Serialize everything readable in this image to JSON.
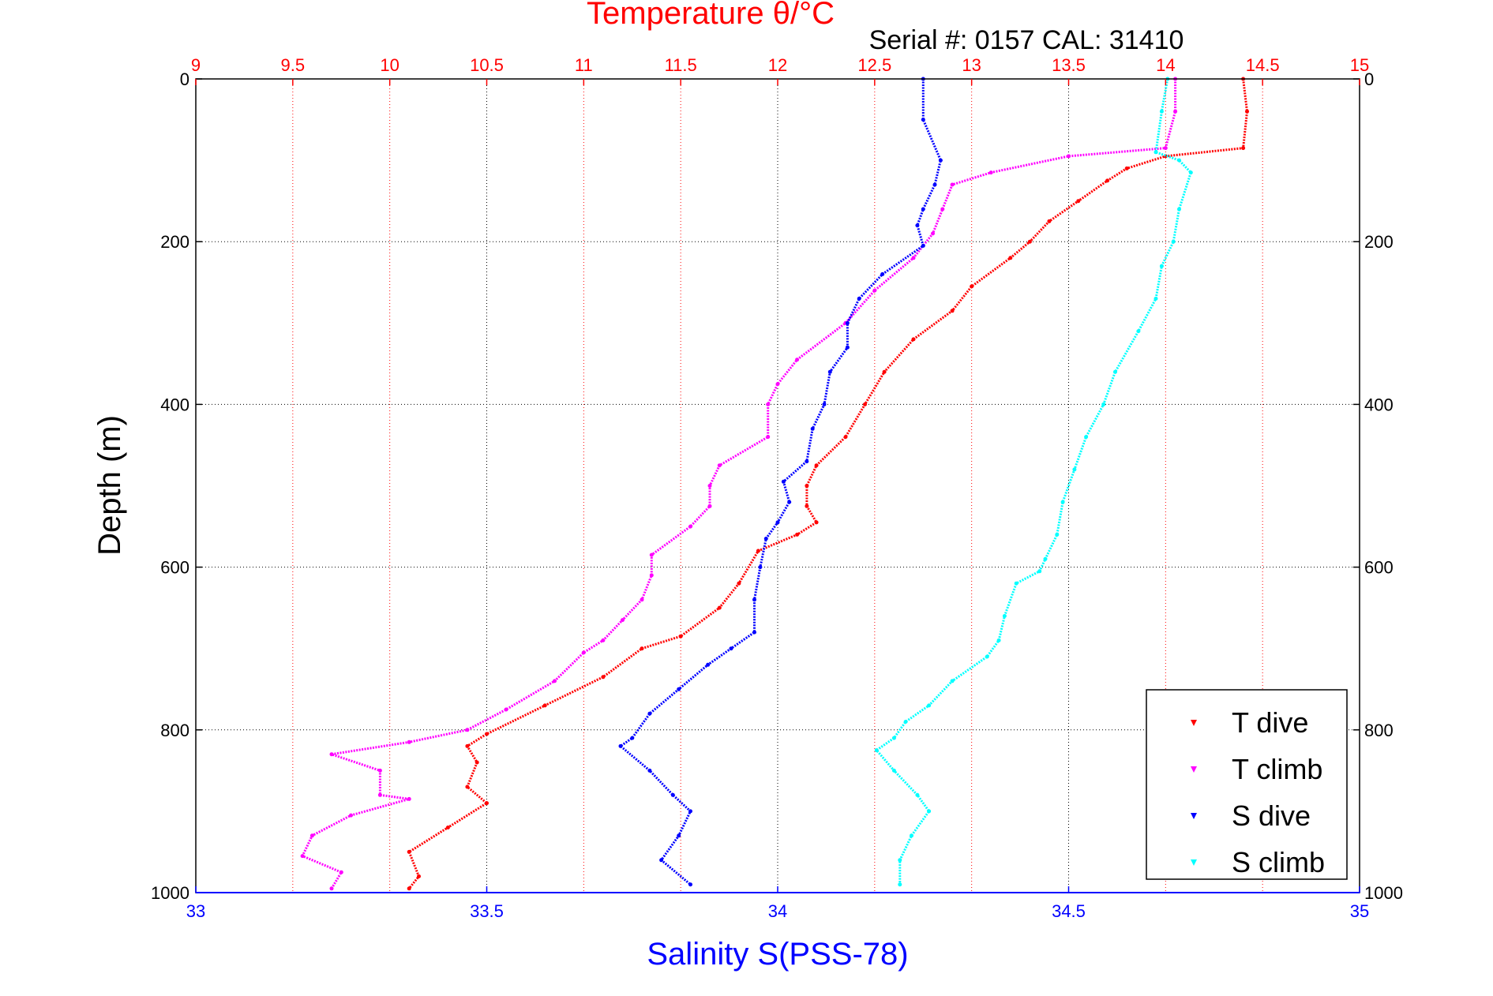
{
  "serial_label": "Serial #: 0157   CAL: 31410",
  "colors": {
    "t_dive": "#ff0000",
    "t_climb": "#ff00ff",
    "s_dive": "#0000ff",
    "s_climb": "#00ffff",
    "temp_axis": "#ff0000",
    "sal_axis": "#0000ff",
    "grid": "#000000"
  },
  "chart_data": {
    "type": "scatter",
    "title": "Temperature θ/°C",
    "xlabel": "Salinity S(PSS-78)",
    "ylabel": "Depth (m)",
    "y_reversed": true,
    "ylim": [
      0,
      1000
    ],
    "yticks": [
      0,
      200,
      400,
      600,
      800,
      1000
    ],
    "salinity_axis": {
      "position": "bottom",
      "range": [
        33,
        35
      ],
      "ticks": [
        33,
        33.5,
        34,
        34.5,
        35
      ]
    },
    "temperature_axis": {
      "position": "top",
      "range": [
        9,
        15
      ],
      "ticks": [
        9,
        9.5,
        10,
        10.5,
        11,
        11.5,
        12,
        12.5,
        13,
        13.5,
        14,
        14.5,
        15
      ]
    },
    "grid": true,
    "legend": {
      "position": "bottom-right",
      "entries": [
        "T dive",
        "T climb",
        "S dive",
        "S climb"
      ]
    },
    "series": [
      {
        "name": "T dive",
        "axis": "temperature",
        "color": "#ff0000",
        "points": [
          [
            14.4,
            0
          ],
          [
            14.42,
            40
          ],
          [
            14.4,
            85
          ],
          [
            14.0,
            95
          ],
          [
            13.8,
            110
          ],
          [
            13.7,
            125
          ],
          [
            13.55,
            150
          ],
          [
            13.4,
            175
          ],
          [
            13.3,
            200
          ],
          [
            13.2,
            220
          ],
          [
            13.0,
            255
          ],
          [
            12.9,
            285
          ],
          [
            12.7,
            320
          ],
          [
            12.55,
            360
          ],
          [
            12.45,
            400
          ],
          [
            12.35,
            440
          ],
          [
            12.2,
            475
          ],
          [
            12.15,
            500
          ],
          [
            12.15,
            525
          ],
          [
            12.2,
            545
          ],
          [
            12.1,
            560
          ],
          [
            11.9,
            580
          ],
          [
            11.8,
            620
          ],
          [
            11.7,
            650
          ],
          [
            11.5,
            685
          ],
          [
            11.3,
            700
          ],
          [
            11.1,
            735
          ],
          [
            10.8,
            770
          ],
          [
            10.5,
            805
          ],
          [
            10.4,
            820
          ],
          [
            10.45,
            840
          ],
          [
            10.4,
            870
          ],
          [
            10.5,
            890
          ],
          [
            10.3,
            920
          ],
          [
            10.1,
            950
          ],
          [
            10.15,
            980
          ],
          [
            10.1,
            995
          ]
        ]
      },
      {
        "name": "T climb",
        "axis": "temperature",
        "color": "#ff00ff",
        "points": [
          [
            14.05,
            0
          ],
          [
            14.05,
            40
          ],
          [
            14.0,
            85
          ],
          [
            13.5,
            95
          ],
          [
            13.1,
            115
          ],
          [
            12.9,
            130
          ],
          [
            12.85,
            160
          ],
          [
            12.8,
            190
          ],
          [
            12.7,
            220
          ],
          [
            12.5,
            260
          ],
          [
            12.35,
            300
          ],
          [
            12.1,
            345
          ],
          [
            12.0,
            375
          ],
          [
            11.95,
            400
          ],
          [
            11.95,
            440
          ],
          [
            11.7,
            475
          ],
          [
            11.65,
            500
          ],
          [
            11.65,
            525
          ],
          [
            11.55,
            550
          ],
          [
            11.35,
            585
          ],
          [
            11.35,
            610
          ],
          [
            11.3,
            640
          ],
          [
            11.2,
            665
          ],
          [
            11.1,
            690
          ],
          [
            11.0,
            705
          ],
          [
            10.85,
            740
          ],
          [
            10.6,
            775
          ],
          [
            10.4,
            800
          ],
          [
            10.1,
            815
          ],
          [
            9.7,
            830
          ],
          [
            9.95,
            850
          ],
          [
            9.95,
            880
          ],
          [
            10.1,
            885
          ],
          [
            9.8,
            905
          ],
          [
            9.6,
            930
          ],
          [
            9.55,
            955
          ],
          [
            9.75,
            975
          ],
          [
            9.7,
            995
          ]
        ]
      },
      {
        "name": "S dive",
        "axis": "salinity",
        "color": "#0000ff",
        "points": [
          [
            34.25,
            0
          ],
          [
            34.25,
            50
          ],
          [
            34.28,
            100
          ],
          [
            34.27,
            130
          ],
          [
            34.25,
            160
          ],
          [
            34.24,
            180
          ],
          [
            34.25,
            205
          ],
          [
            34.18,
            240
          ],
          [
            34.14,
            270
          ],
          [
            34.12,
            300
          ],
          [
            34.12,
            330
          ],
          [
            34.09,
            360
          ],
          [
            34.08,
            400
          ],
          [
            34.06,
            430
          ],
          [
            34.05,
            470
          ],
          [
            34.01,
            495
          ],
          [
            34.02,
            520
          ],
          [
            34.0,
            545
          ],
          [
            33.98,
            565
          ],
          [
            33.97,
            600
          ],
          [
            33.96,
            640
          ],
          [
            33.96,
            680
          ],
          [
            33.92,
            700
          ],
          [
            33.88,
            720
          ],
          [
            33.83,
            750
          ],
          [
            33.78,
            780
          ],
          [
            33.75,
            810
          ],
          [
            33.73,
            820
          ],
          [
            33.78,
            850
          ],
          [
            33.82,
            880
          ],
          [
            33.85,
            900
          ],
          [
            33.83,
            930
          ],
          [
            33.8,
            960
          ],
          [
            33.85,
            990
          ]
        ]
      },
      {
        "name": "S climb",
        "axis": "salinity",
        "color": "#00ffff",
        "points": [
          [
            34.67,
            0
          ],
          [
            34.66,
            40
          ],
          [
            34.65,
            90
          ],
          [
            34.69,
            100
          ],
          [
            34.71,
            115
          ],
          [
            34.69,
            160
          ],
          [
            34.68,
            200
          ],
          [
            34.66,
            230
          ],
          [
            34.65,
            270
          ],
          [
            34.62,
            310
          ],
          [
            34.58,
            360
          ],
          [
            34.56,
            400
          ],
          [
            34.53,
            440
          ],
          [
            34.51,
            480
          ],
          [
            34.49,
            520
          ],
          [
            34.48,
            560
          ],
          [
            34.46,
            590
          ],
          [
            34.45,
            605
          ],
          [
            34.41,
            620
          ],
          [
            34.39,
            660
          ],
          [
            34.38,
            690
          ],
          [
            34.36,
            710
          ],
          [
            34.3,
            740
          ],
          [
            34.26,
            770
          ],
          [
            34.22,
            790
          ],
          [
            34.2,
            810
          ],
          [
            34.17,
            825
          ],
          [
            34.2,
            850
          ],
          [
            34.24,
            880
          ],
          [
            34.26,
            900
          ],
          [
            34.23,
            930
          ],
          [
            34.21,
            960
          ],
          [
            34.21,
            990
          ]
        ]
      }
    ]
  }
}
